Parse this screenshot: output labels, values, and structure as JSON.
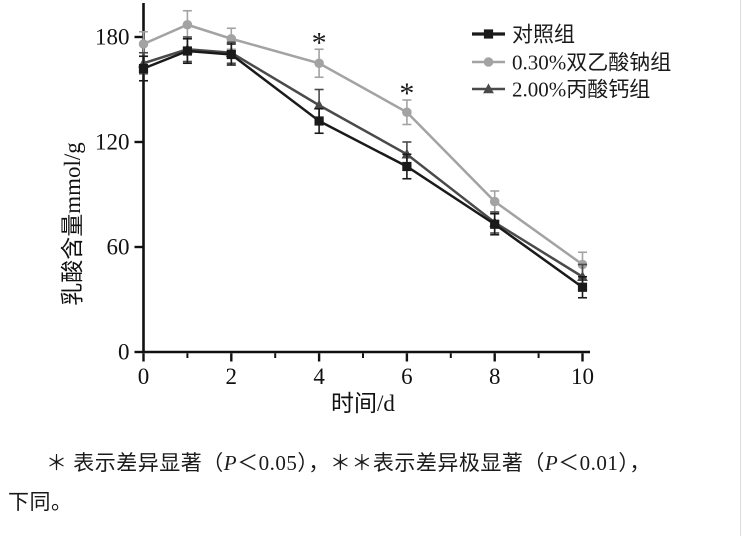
{
  "page": {
    "background": "#ffffff"
  },
  "chart_data": {
    "type": "line",
    "x": [
      0,
      1,
      2,
      4,
      6,
      8,
      10
    ],
    "xlabel": "时间/d",
    "ylabel": "乳酸含量mmol/g",
    "xlim": [
      0,
      10.2
    ],
    "ylim": [
      0,
      198
    ],
    "yticks": [
      0,
      60,
      120,
      180
    ],
    "xticks_major": [
      0,
      2,
      4,
      6,
      8,
      10
    ],
    "xticks_minor": [
      1,
      3,
      5,
      7,
      9
    ],
    "grid": false,
    "legend_position": "top-right",
    "series": [
      {
        "name": "对照组",
        "marker": "square",
        "color": "#1a1a1a",
        "values": [
          162,
          172,
          170,
          132,
          106,
          73,
          37
        ],
        "errors": [
          7,
          7,
          6,
          7,
          7,
          6,
          6
        ]
      },
      {
        "name": "0.30%双乙酸钠组",
        "marker": "circle",
        "color": "#a3a3a3",
        "values": [
          176,
          187,
          179,
          165,
          137,
          86,
          50
        ],
        "errors": [
          7,
          8,
          6,
          8,
          7,
          6,
          7
        ]
      },
      {
        "name": "2.00%丙酸钙组",
        "marker": "triangle",
        "color": "#4a4a4a",
        "values": [
          165,
          173,
          171,
          141,
          113,
          74,
          43
        ],
        "errors": [
          6,
          7,
          6,
          9,
          7,
          6,
          7
        ]
      }
    ],
    "annotations": [
      {
        "text": "*",
        "series": 1,
        "x": 4
      },
      {
        "text": "*",
        "series": 1,
        "x": 6
      }
    ]
  },
  "footnote": {
    "seg1": "＊ 表示差异显著（",
    "p1": "P",
    "seg2": "＜0.05），＊＊表示差异极显著（",
    "p2": "P",
    "seg3": "＜0.01），",
    "line2": "下同。"
  }
}
